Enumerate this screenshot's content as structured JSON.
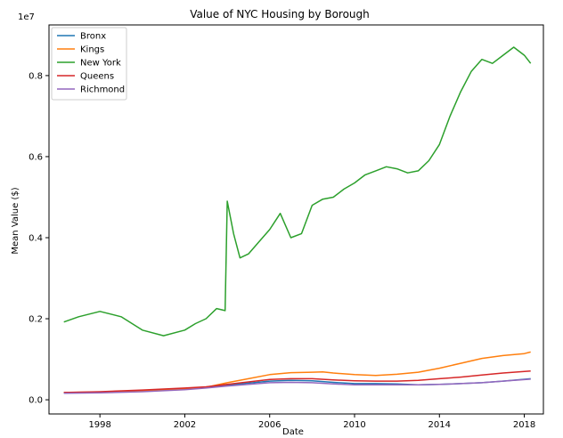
{
  "chart_data": {
    "type": "line",
    "title": "Value of NYC Housing by Borough",
    "xlabel": "Date",
    "ylabel": "Mean Value ($)",
    "y_scale_label": "1e7",
    "xlim": [
      1995.6,
      2018.9
    ],
    "ylim": [
      -0.035,
      0.925
    ],
    "x_ticks": [
      1998,
      2002,
      2006,
      2010,
      2014,
      2018
    ],
    "x_tick_labels": [
      "1998",
      "2002",
      "2006",
      "2010",
      "2014",
      "2018"
    ],
    "y_ticks": [
      0.0,
      0.2,
      0.4,
      0.6,
      0.8
    ],
    "y_tick_labels": [
      "0.0",
      "0.2",
      "0.4",
      "0.6",
      "0.8"
    ],
    "grid": false,
    "legend_position": "upper-left",
    "series": [
      {
        "name": "Bronx",
        "color": "#1f77b4",
        "points": [
          [
            1996.3,
            0.018
          ],
          [
            1998,
            0.018
          ],
          [
            2000,
            0.022
          ],
          [
            2002,
            0.027
          ],
          [
            2003,
            0.031
          ],
          [
            2004,
            0.036
          ],
          [
            2005,
            0.041
          ],
          [
            2006,
            0.046
          ],
          [
            2007,
            0.048
          ],
          [
            2008,
            0.047
          ],
          [
            2009,
            0.043
          ],
          [
            2010,
            0.04
          ],
          [
            2011,
            0.04
          ],
          [
            2012,
            0.039
          ],
          [
            2013,
            0.037
          ],
          [
            2014,
            0.038
          ],
          [
            2015,
            0.04
          ],
          [
            2016,
            0.042
          ],
          [
            2017,
            0.046
          ],
          [
            2018.3,
            0.052
          ]
        ]
      },
      {
        "name": "Kings",
        "color": "#ff7f0e",
        "points": [
          [
            1996.3,
            0.018
          ],
          [
            1998,
            0.019
          ],
          [
            2000,
            0.022
          ],
          [
            2002,
            0.027
          ],
          [
            2003,
            0.031
          ],
          [
            2004,
            0.042
          ],
          [
            2005,
            0.052
          ],
          [
            2006,
            0.062
          ],
          [
            2007,
            0.067
          ],
          [
            2008,
            0.068
          ],
          [
            2008.5,
            0.069
          ],
          [
            2009,
            0.066
          ],
          [
            2010,
            0.062
          ],
          [
            2011,
            0.06
          ],
          [
            2012,
            0.063
          ],
          [
            2013,
            0.068
          ],
          [
            2014,
            0.078
          ],
          [
            2015,
            0.09
          ],
          [
            2016,
            0.102
          ],
          [
            2017,
            0.109
          ],
          [
            2018,
            0.114
          ],
          [
            2018.3,
            0.118
          ]
        ]
      },
      {
        "name": "New York",
        "color": "#2ca02c",
        "points": [
          [
            1996.3,
            0.192
          ],
          [
            1997,
            0.205
          ],
          [
            1998,
            0.218
          ],
          [
            1999,
            0.205
          ],
          [
            2000,
            0.172
          ],
          [
            2001,
            0.158
          ],
          [
            2002,
            0.172
          ],
          [
            2002.5,
            0.188
          ],
          [
            2003,
            0.2
          ],
          [
            2003.5,
            0.225
          ],
          [
            2003.9,
            0.22
          ],
          [
            2004,
            0.49
          ],
          [
            2004.3,
            0.41
          ],
          [
            2004.6,
            0.35
          ],
          [
            2005,
            0.36
          ],
          [
            2005.5,
            0.39
          ],
          [
            2006,
            0.42
          ],
          [
            2006.5,
            0.46
          ],
          [
            2007,
            0.4
          ],
          [
            2007.5,
            0.41
          ],
          [
            2008,
            0.48
          ],
          [
            2008.5,
            0.495
          ],
          [
            2009,
            0.5
          ],
          [
            2009.5,
            0.52
          ],
          [
            2010,
            0.535
          ],
          [
            2010.5,
            0.555
          ],
          [
            2011,
            0.565
          ],
          [
            2011.5,
            0.575
          ],
          [
            2012,
            0.57
          ],
          [
            2012.5,
            0.56
          ],
          [
            2013,
            0.565
          ],
          [
            2013.5,
            0.59
          ],
          [
            2014,
            0.63
          ],
          [
            2014.5,
            0.7
          ],
          [
            2015,
            0.76
          ],
          [
            2015.5,
            0.81
          ],
          [
            2016,
            0.84
          ],
          [
            2016.5,
            0.83
          ],
          [
            2017,
            0.85
          ],
          [
            2017.5,
            0.87
          ],
          [
            2018,
            0.85
          ],
          [
            2018.3,
            0.83
          ]
        ]
      },
      {
        "name": "Queens",
        "color": "#d62728",
        "points": [
          [
            1996.3,
            0.018
          ],
          [
            1998,
            0.02
          ],
          [
            2000,
            0.024
          ],
          [
            2002,
            0.029
          ],
          [
            2003,
            0.032
          ],
          [
            2004,
            0.038
          ],
          [
            2005,
            0.044
          ],
          [
            2006,
            0.05
          ],
          [
            2007,
            0.052
          ],
          [
            2008,
            0.052
          ],
          [
            2009,
            0.049
          ],
          [
            2010,
            0.047
          ],
          [
            2011,
            0.046
          ],
          [
            2012,
            0.046
          ],
          [
            2013,
            0.048
          ],
          [
            2014,
            0.052
          ],
          [
            2015,
            0.056
          ],
          [
            2016,
            0.061
          ],
          [
            2017,
            0.066
          ],
          [
            2018.3,
            0.071
          ]
        ]
      },
      {
        "name": "Richmond",
        "color": "#9467bd",
        "points": [
          [
            1996.3,
            0.016
          ],
          [
            1998,
            0.017
          ],
          [
            2000,
            0.02
          ],
          [
            2002,
            0.025
          ],
          [
            2003,
            0.029
          ],
          [
            2004,
            0.034
          ],
          [
            2005,
            0.038
          ],
          [
            2006,
            0.042
          ],
          [
            2007,
            0.043
          ],
          [
            2008,
            0.042
          ],
          [
            2009,
            0.039
          ],
          [
            2010,
            0.037
          ],
          [
            2011,
            0.037
          ],
          [
            2012,
            0.037
          ],
          [
            2013,
            0.037
          ],
          [
            2014,
            0.038
          ],
          [
            2015,
            0.04
          ],
          [
            2016,
            0.042
          ],
          [
            2017,
            0.046
          ],
          [
            2018.3,
            0.051
          ]
        ]
      }
    ]
  }
}
